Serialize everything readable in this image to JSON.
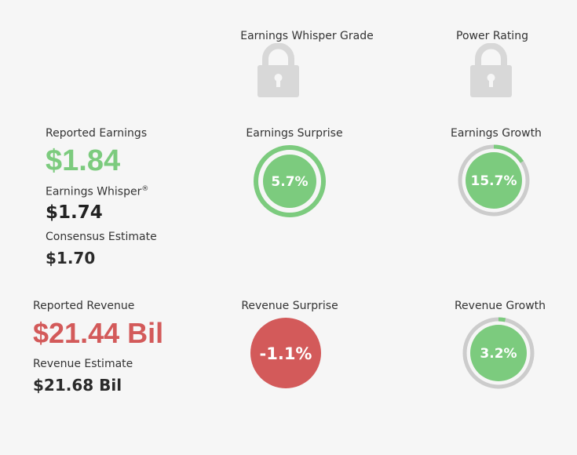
{
  "grades": {
    "whisper_grade_label": "Earnings Whisper Grade",
    "power_rating_label": "Power Rating",
    "lock_icon": "lock-icon",
    "lock_color": "#d8d8d8"
  },
  "earnings": {
    "reported_label": "Reported Earnings",
    "reported_value": "$1.84",
    "reported_color": "#7ccb7e",
    "whisper_label": "Earnings Whisper",
    "whisper_mark": "®",
    "whisper_value": "$1.74",
    "consensus_label": "Consensus Estimate",
    "consensus_value": "$1.70",
    "surprise_label": "Earnings Surprise",
    "surprise_value": "5.7%",
    "surprise_fraction": 1.0,
    "growth_label": "Earnings Growth",
    "growth_value": "15.7%",
    "growth_fraction": 0.157
  },
  "revenue": {
    "reported_label": "Reported Revenue",
    "reported_value": "$21.44 Bil",
    "reported_color": "#d35a5a",
    "estimate_label": "Revenue Estimate",
    "estimate_value": "$21.68 Bil",
    "surprise_label": "Revenue Surprise",
    "surprise_value": "-1.1%",
    "growth_label": "Revenue Growth",
    "growth_value": "3.2%",
    "growth_fraction": 0.032
  },
  "colors": {
    "positive": "#7ccb7e",
    "negative": "#d35a5a",
    "track": "#cccccc"
  }
}
